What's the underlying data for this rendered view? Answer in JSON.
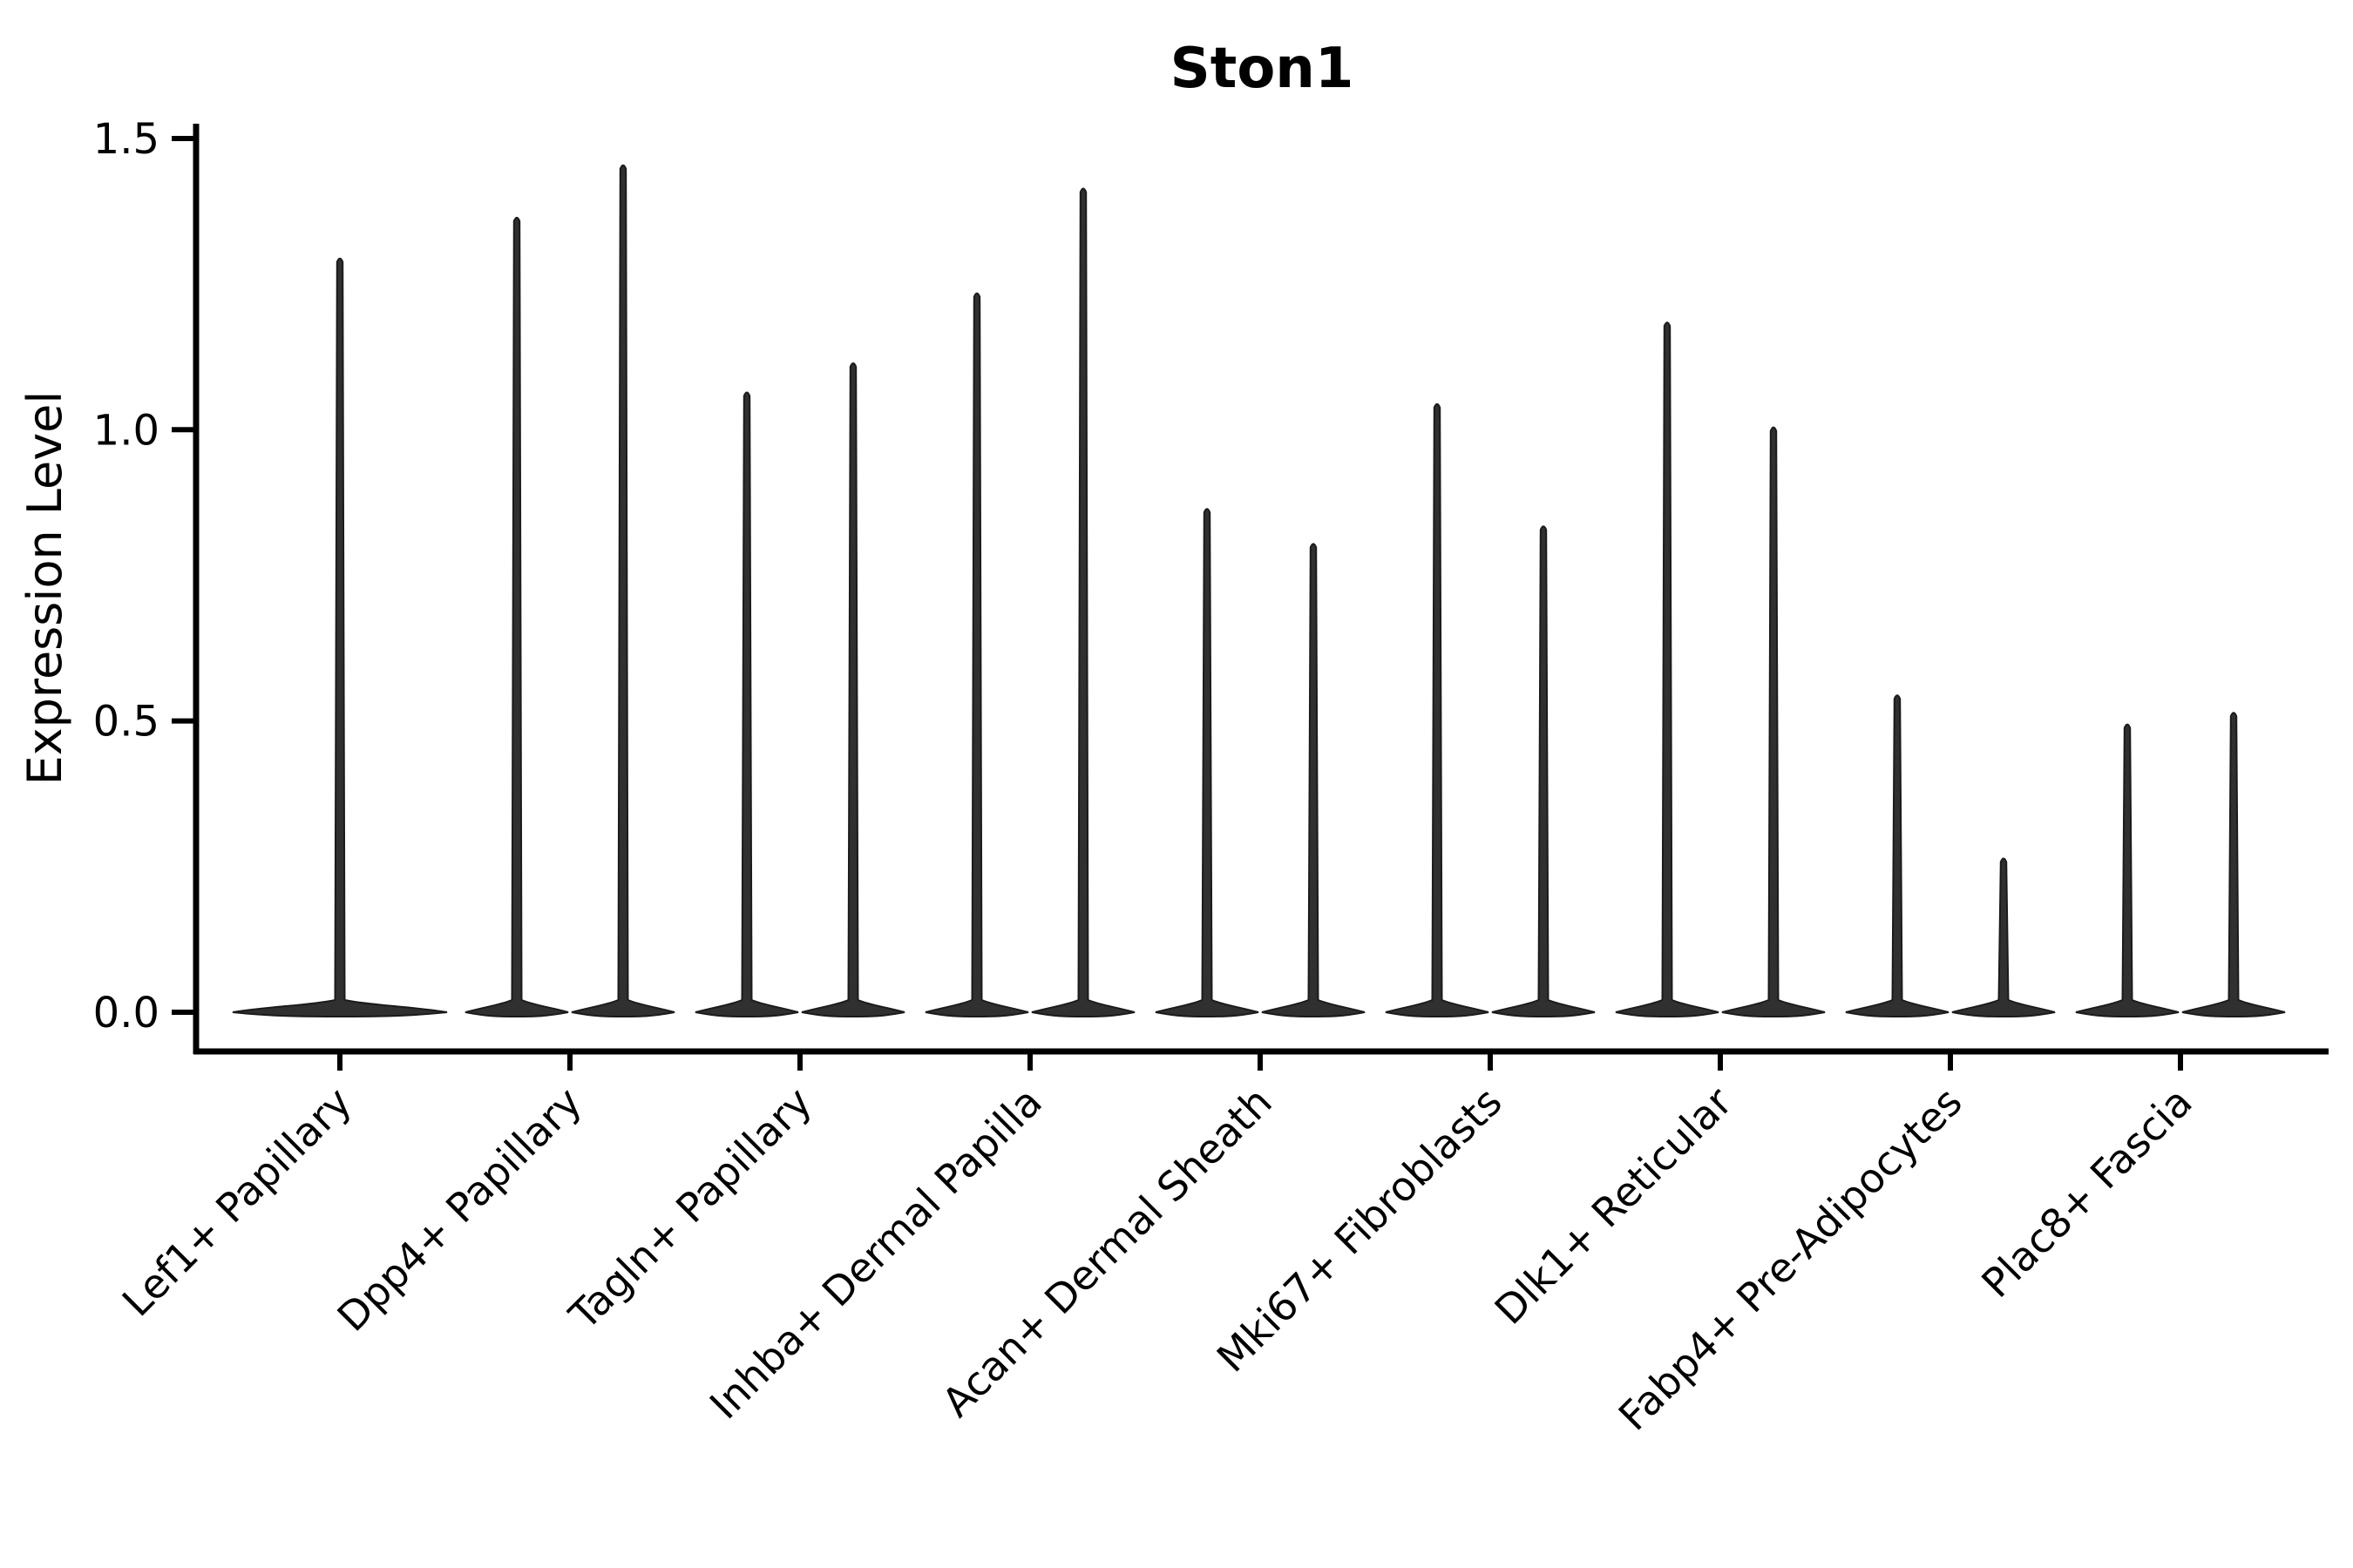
{
  "colors": {
    "background": "#ffffff",
    "violin_fill": "#303030",
    "violin_stroke": "#1b1b1b",
    "axis": "#000000",
    "text": "#000000"
  },
  "chart_data": {
    "type": "violin",
    "title": "Ston1",
    "xlabel": "",
    "ylabel": "Expression Level",
    "ylim": [
      0,
      1.5
    ],
    "yticks": [
      0.0,
      0.5,
      1.0,
      1.5
    ],
    "ytick_labels": [
      "0.0",
      "0.5",
      "1.0",
      "1.5"
    ],
    "grid": false,
    "legend": null,
    "x_label_rotation_deg": 45,
    "violin_style": "wide flat base at 0 with thin spike to max expression",
    "categories": [
      {
        "label": "Lef1+ Papillary",
        "violins": [
          {
            "peak_expression": 1.3
          }
        ]
      },
      {
        "label": "Dpp4+ Papillary",
        "violins": [
          {
            "peak_expression": 1.37
          },
          {
            "peak_expression": 1.46
          }
        ]
      },
      {
        "label": "Tagln+ Papillary",
        "violins": [
          {
            "peak_expression": 1.07
          },
          {
            "peak_expression": 1.12
          }
        ]
      },
      {
        "label": "Inhba+ Dermal Papilla",
        "violins": [
          {
            "peak_expression": 1.24
          },
          {
            "peak_expression": 1.42
          }
        ]
      },
      {
        "label": "Acan+ Dermal Sheath",
        "violins": [
          {
            "peak_expression": 0.87
          },
          {
            "peak_expression": 0.81
          }
        ]
      },
      {
        "label": "Mki67+ Fibroblasts",
        "violins": [
          {
            "peak_expression": 1.05
          },
          {
            "peak_expression": 0.84
          }
        ]
      },
      {
        "label": "Dlk1+ Reticular",
        "violins": [
          {
            "peak_expression": 1.19
          },
          {
            "peak_expression": 1.01
          }
        ]
      },
      {
        "label": "Fabp4+ Pre-Adipocytes",
        "violins": [
          {
            "peak_expression": 0.55
          },
          {
            "peak_expression": 0.27
          }
        ]
      },
      {
        "label": "Plac8+ Fascia",
        "violins": [
          {
            "peak_expression": 0.5
          },
          {
            "peak_expression": 0.52
          }
        ]
      }
    ]
  }
}
